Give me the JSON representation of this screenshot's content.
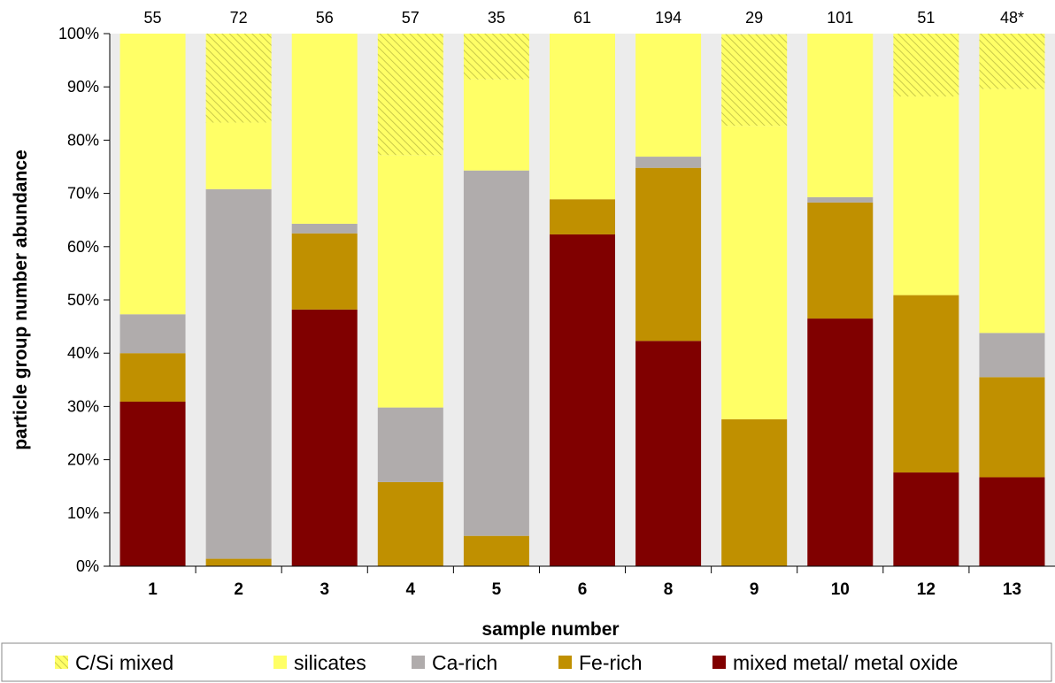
{
  "chart_data": {
    "type": "bar",
    "stacked": true,
    "xlabel": "sample number",
    "ylabel": "particle group number abundance",
    "ylim": [
      0,
      100
    ],
    "y_ticks": [
      "0%",
      "10%",
      "20%",
      "30%",
      "40%",
      "50%",
      "60%",
      "70%",
      "80%",
      "90%",
      "100%"
    ],
    "categories": [
      "1",
      "2",
      "3",
      "4",
      "5",
      "6",
      "8",
      "9",
      "10",
      "12",
      "13"
    ],
    "counts": [
      "55",
      "72",
      "56",
      "57",
      "35",
      "61",
      "194",
      "29",
      "101",
      "51",
      "48*"
    ],
    "series": [
      {
        "name": "mixed metal/ metal oxide",
        "color": "#800000",
        "values": [
          30.9,
          0,
          48.2,
          0,
          0,
          62.3,
          42.3,
          0,
          46.5,
          17.6,
          16.7
        ]
      },
      {
        "name": "Fe-rich",
        "color": "#c09000",
        "values": [
          9.1,
          1.4,
          14.3,
          15.8,
          5.7,
          6.6,
          32.5,
          27.6,
          21.8,
          33.3,
          18.8
        ]
      },
      {
        "name": "Ca-rich",
        "color": "#b0acac",
        "values": [
          7.3,
          69.4,
          1.8,
          14.0,
          68.6,
          0,
          2.1,
          0,
          1.0,
          0,
          8.3
        ]
      },
      {
        "name": "silicates",
        "color": "#ffff66",
        "values": [
          52.7,
          12.5,
          35.7,
          47.4,
          17.1,
          31.1,
          23.1,
          55.1,
          30.7,
          37.3,
          45.8
        ]
      },
      {
        "name": "C/Si mixed",
        "color": "#ffff66",
        "pattern": "hatched",
        "values": [
          0,
          16.7,
          0,
          22.8,
          8.6,
          0,
          0,
          17.2,
          0,
          11.8,
          10.4
        ]
      }
    ],
    "legend_order": [
      "C/Si mixed",
      "silicates",
      "Ca-rich",
      "Fe-rich",
      "mixed metal/ metal oxide"
    ],
    "legend_position": "bottom",
    "grid": false,
    "plot_background": "#ececec"
  }
}
